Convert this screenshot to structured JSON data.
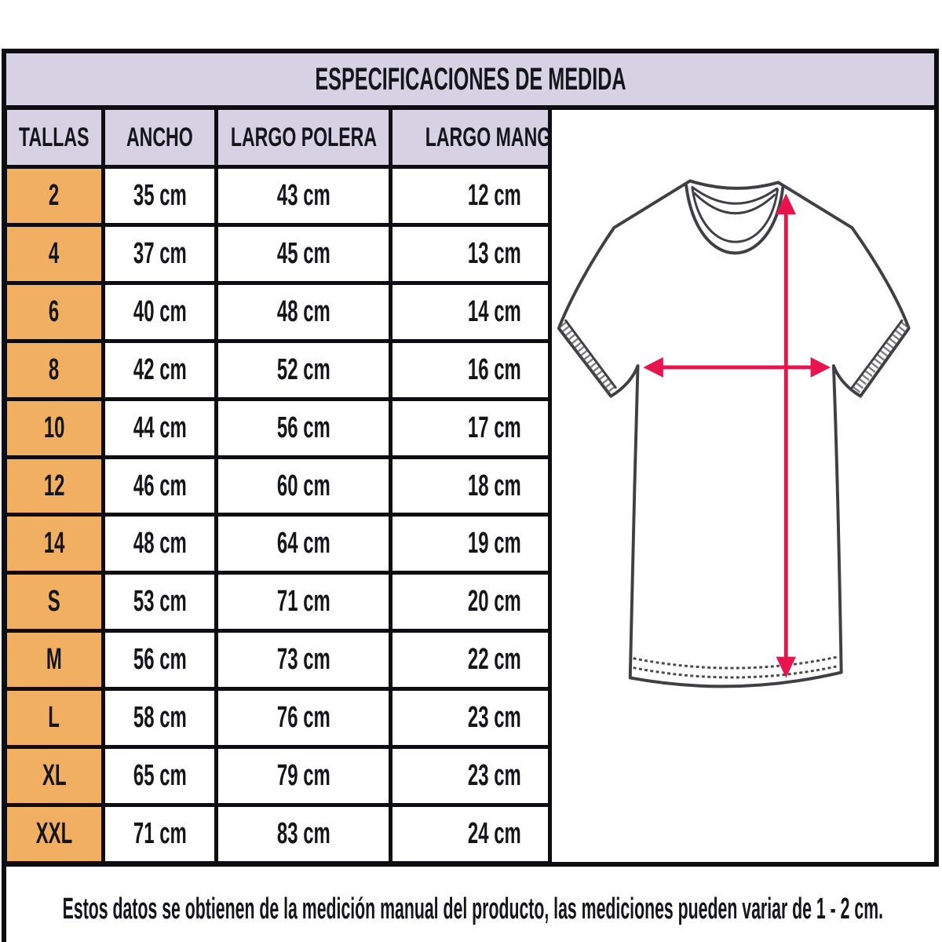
{
  "title": "ESPECIFICACIONES DE MEDIDA",
  "table": {
    "headers": [
      "TALLAS",
      "ANCHO",
      "LARGO POLERA",
      "LARGO MANGA"
    ],
    "rows": [
      [
        "2",
        "35 cm",
        "43 cm",
        "12 cm"
      ],
      [
        "4",
        "37 cm",
        "45 cm",
        "13 cm"
      ],
      [
        "6",
        "40 cm",
        "48 cm",
        "14 cm"
      ],
      [
        "8",
        "42 cm",
        "52 cm",
        "16 cm"
      ],
      [
        "10",
        "44 cm",
        "56 cm",
        "17 cm"
      ],
      [
        "12",
        "46 cm",
        "60 cm",
        "18 cm"
      ],
      [
        "14",
        "48 cm",
        "64 cm",
        "19 cm"
      ],
      [
        "S",
        "53 cm",
        "71 cm",
        "20 cm"
      ],
      [
        "M",
        "56 cm",
        "73 cm",
        "22 cm"
      ],
      [
        "L",
        "58 cm",
        "76 cm",
        "23 cm"
      ],
      [
        "XL",
        "65 cm",
        "79 cm",
        "23 cm"
      ],
      [
        "XXL",
        "71 cm",
        "83 cm",
        "24 cm"
      ]
    ]
  },
  "note": "Estos datos se obtienen de la medición manual del producto, las mediciones pueden variar de 1 - 2 cm.",
  "diagram": {
    "name": "t-shirt-measurement-diagram",
    "arrows": [
      "ancho (chest width)",
      "largo polera (body length)"
    ]
  },
  "colors": {
    "header_bg": "#d6d2e4",
    "size_col_bg": "#f1af62",
    "arrow": "#e9134e",
    "border": "#0d0d12",
    "outline": "#3f3f44"
  }
}
